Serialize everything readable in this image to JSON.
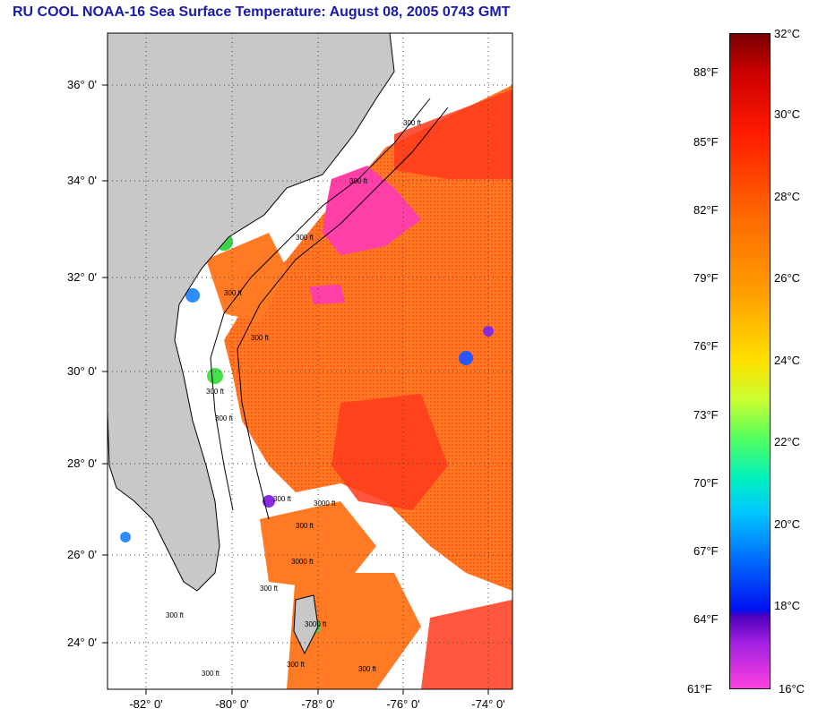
{
  "title": "RU COOL  NOAA-16  Sea Surface Temperature:  August 08, 2005 0743 GMT",
  "map": {
    "lat_labels": [
      "36° 0'",
      "34° 0'",
      "32° 0'",
      "30° 0'",
      "28° 0'",
      "26° 0'",
      "24° 0'"
    ],
    "lon_labels": [
      "-82° 0'",
      "-80° 0'",
      "-78° 0'",
      "-76° 0'",
      "-74° 0'"
    ],
    "contour_labels": [
      "300 ft",
      "300 ft",
      "300 ft",
      "300 ft",
      "300 ft",
      "300 ft",
      "300 ft",
      "300 ft",
      "300 ft",
      "300 ft",
      "300 ft",
      "300 ft",
      "300 ft",
      "300 ft",
      "3000 ft",
      "3000 ft",
      "3000 ft"
    ],
    "colors": {
      "land": "#c8c8c8",
      "cloud": "#ffffff",
      "warm": "#ff6a1e",
      "hot": "#ff2a1a",
      "cold": "#ff40b0"
    }
  },
  "colorbar": {
    "fahrenheit": [
      "88°F",
      "85°F",
      "82°F",
      "79°F",
      "76°F",
      "73°F",
      "70°F",
      "67°F",
      "64°F",
      "61°F"
    ],
    "celsius": [
      "32°C",
      "30°C",
      "28°C",
      "26°C",
      "24°C",
      "22°C",
      "20°C",
      "18°C",
      "16°C"
    ],
    "range_c": [
      16,
      32
    ]
  }
}
